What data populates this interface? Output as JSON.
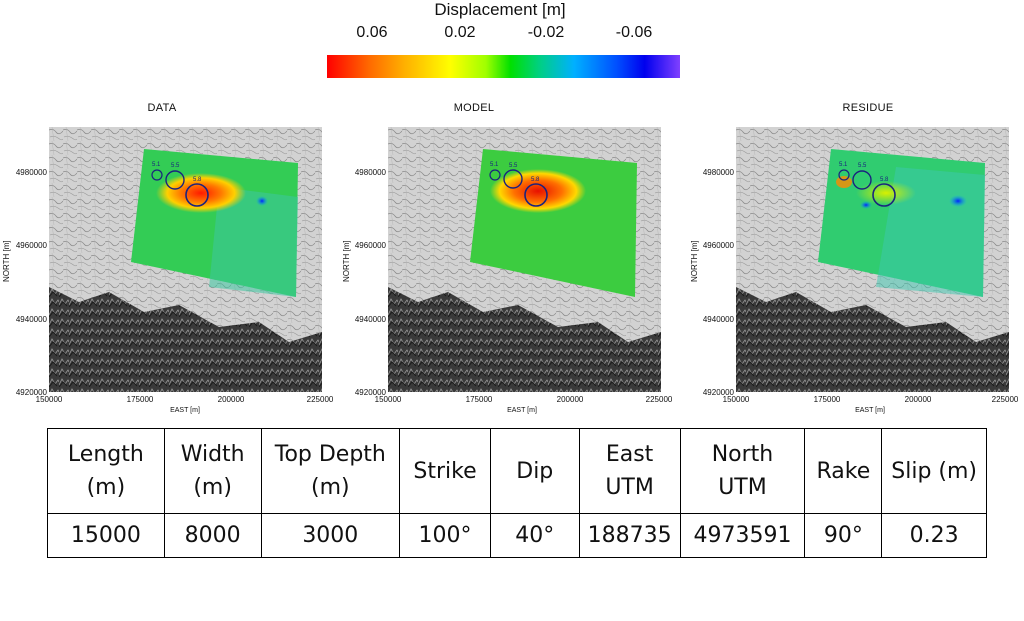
{
  "colorbar": {
    "title": "Displacement [m]",
    "ticks": [
      "0.06",
      "0.02",
      "-0.02",
      "-0.06"
    ]
  },
  "panels": [
    {
      "title": "DATA",
      "circle_labels": [
        "5.1",
        "5.5",
        "5.8"
      ]
    },
    {
      "title": "MODEL",
      "circle_labels": [
        "5.1",
        "5.5",
        "5.8"
      ]
    },
    {
      "title": "RESIDUE",
      "circle_labels": [
        "5.1",
        "5.5",
        "5.8"
      ]
    }
  ],
  "axes": {
    "ylabel": "NORTH [m]",
    "xlabel": "EAST [m]",
    "yticks": [
      "4980000",
      "4960000",
      "4940000",
      "4920000"
    ],
    "xticks": [
      "150000",
      "175000",
      "200000",
      "225000"
    ]
  },
  "table": {
    "headers": [
      "Length (m)",
      "Width (m)",
      "Top Depth (m)",
      "Strike",
      "Dip",
      "East UTM",
      "North UTM",
      "Rake",
      "Slip (m)"
    ],
    "values": [
      "15000",
      "8000",
      "3000",
      "100°",
      "40°",
      "188735",
      "4973591",
      "90°",
      "0.23"
    ]
  }
}
